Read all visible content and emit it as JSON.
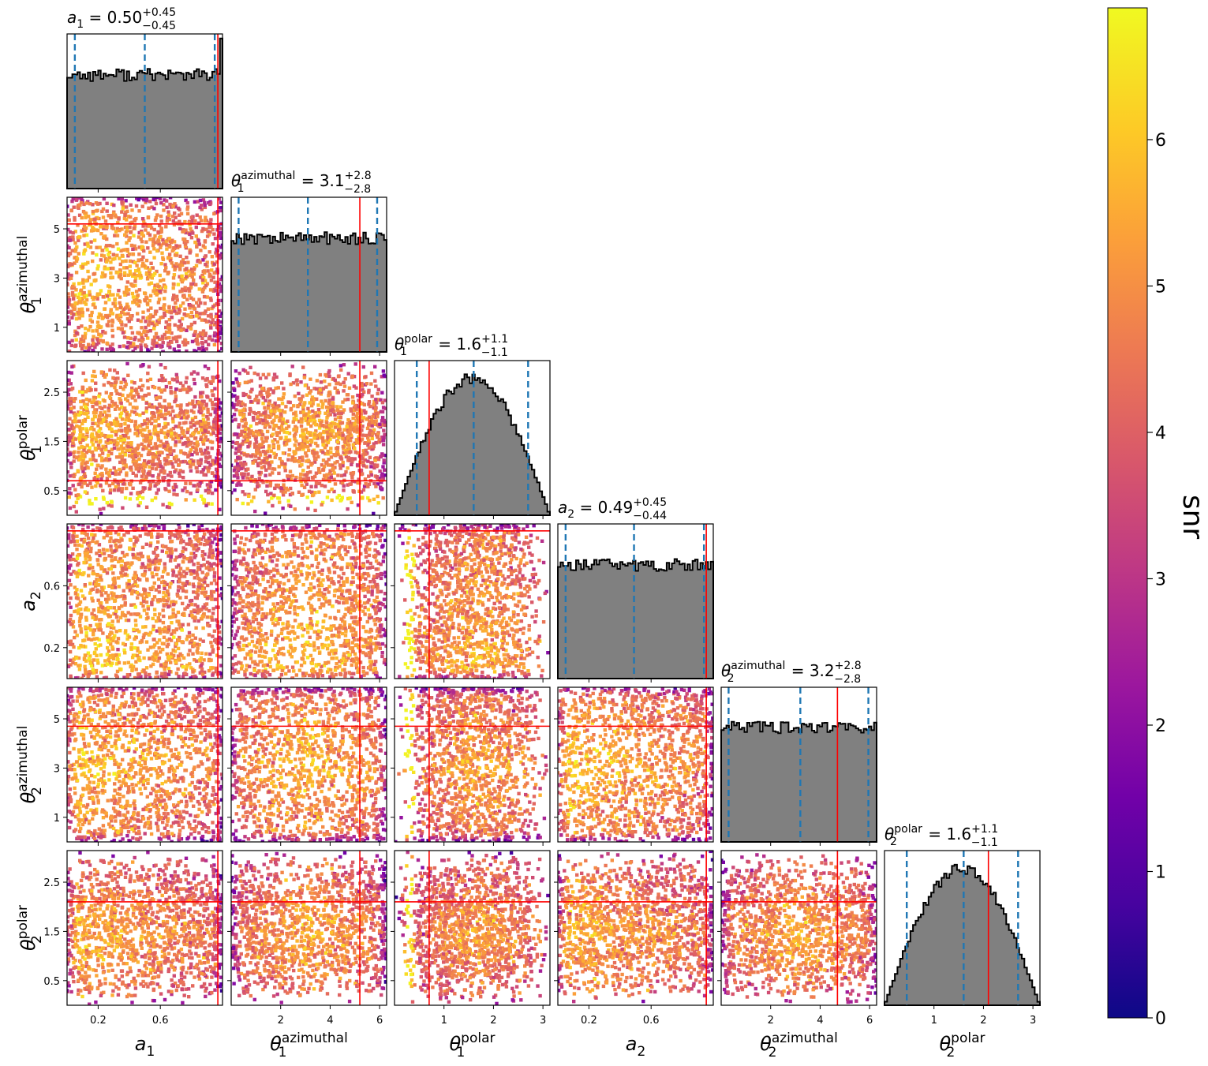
{
  "figure": {
    "colors": {
      "hist_fill": "#808080",
      "hist_edge": "#000000",
      "truth_line": "#ff0000",
      "quantile_line": "#1f77b4",
      "colormap": [
        "#0d0887",
        "#46039f",
        "#7201a8",
        "#9c179e",
        "#bd3786",
        "#d8576b",
        "#ed7953",
        "#fb9f3a",
        "#fdca26",
        "#f0f921"
      ]
    }
  },
  "chart_data": {
    "type": "corner",
    "params": [
      {
        "id": "a1",
        "sym": "a",
        "sub": "1",
        "sup": "",
        "range": [
          0,
          1
        ],
        "ticks": [
          0.2,
          0.6
        ],
        "tick_labels": [
          "0.2",
          "0.6"
        ],
        "truth": 0.97,
        "q": [
          0.05,
          0.5,
          0.95
        ],
        "title": {
          "val": "0.50",
          "plus": "+0.45",
          "minus": "−0.45"
        }
      },
      {
        "id": "t1a",
        "sym": "θ",
        "sub": "1",
        "sup": "azimuthal",
        "range": [
          0,
          6.283
        ],
        "ticks": [
          1,
          3,
          5
        ],
        "tick_labels_y": [
          "1",
          "3",
          "5"
        ],
        "ticks_x": [
          2,
          4,
          6
        ],
        "tick_labels_x": [
          "2",
          "4",
          "6"
        ],
        "truth": 5.2,
        "q": [
          0.3,
          3.1,
          5.9
        ],
        "title": {
          "val": "3.1",
          "plus": "+2.8",
          "minus": "−2.8"
        }
      },
      {
        "id": "t1p",
        "sym": "θ",
        "sub": "1",
        "sup": "polar",
        "range": [
          0,
          3.1416
        ],
        "ticks": [
          0.5,
          1.5,
          2.5
        ],
        "tick_labels_y": [
          "0.5",
          "1.5",
          "2.5"
        ],
        "ticks_x": [
          1,
          2,
          3
        ],
        "tick_labels_x": [
          "1",
          "2",
          "3"
        ],
        "truth": 0.7,
        "q": [
          0.45,
          1.6,
          2.7
        ],
        "title": {
          "val": "1.6",
          "plus": "+1.1",
          "minus": "−1.1"
        }
      },
      {
        "id": "a2",
        "sym": "a",
        "sub": "2",
        "sup": "",
        "range": [
          0,
          1
        ],
        "ticks": [
          0.2,
          0.6
        ],
        "tick_labels": [
          "0.2",
          "0.6"
        ],
        "truth": 0.955,
        "q": [
          0.05,
          0.49,
          0.94
        ],
        "title": {
          "val": "0.49",
          "plus": "+0.45",
          "minus": "−0.44"
        }
      },
      {
        "id": "t2a",
        "sym": "θ",
        "sub": "2",
        "sup": "azimuthal",
        "range": [
          0,
          6.283
        ],
        "ticks": [
          1,
          3,
          5
        ],
        "tick_labels_y": [
          "1",
          "3",
          "5"
        ],
        "ticks_x": [
          2,
          4,
          6
        ],
        "tick_labels_x": [
          "2",
          "4",
          "6"
        ],
        "truth": 4.7,
        "q": [
          0.3,
          3.2,
          5.95
        ],
        "title": {
          "val": "3.2",
          "plus": "+2.8",
          "minus": "−2.8"
        }
      },
      {
        "id": "t2p",
        "sym": "θ",
        "sub": "2",
        "sup": "polar",
        "range": [
          0,
          3.1416
        ],
        "ticks": [
          0.5,
          1.5,
          2.5
        ],
        "tick_labels_y": [
          "0.5",
          "1.5",
          "2.5"
        ],
        "ticks_x": [
          1,
          2,
          3
        ],
        "tick_labels_x": [
          "1",
          "2",
          "3"
        ],
        "truth": 2.1,
        "q": [
          0.45,
          1.6,
          2.7
        ],
        "title": {
          "val": "1.6",
          "plus": "+1.1",
          "minus": "−1.1"
        }
      }
    ],
    "marginals": {
      "a1": {
        "shape": "uniform",
        "edge_bump": true
      },
      "t1a": {
        "shape": "uniform"
      },
      "t1p": {
        "shape": "sine"
      },
      "a2": {
        "shape": "uniform"
      },
      "t2a": {
        "shape": "uniform"
      },
      "t2p": {
        "shape": "sine"
      }
    },
    "colorbar": {
      "label": "snr",
      "range": [
        0,
        6.9
      ],
      "ticks": [
        0,
        1,
        2,
        3,
        4,
        5,
        6
      ],
      "tick_labels": [
        "0",
        "1",
        "2",
        "3",
        "4",
        "5",
        "6"
      ]
    }
  }
}
